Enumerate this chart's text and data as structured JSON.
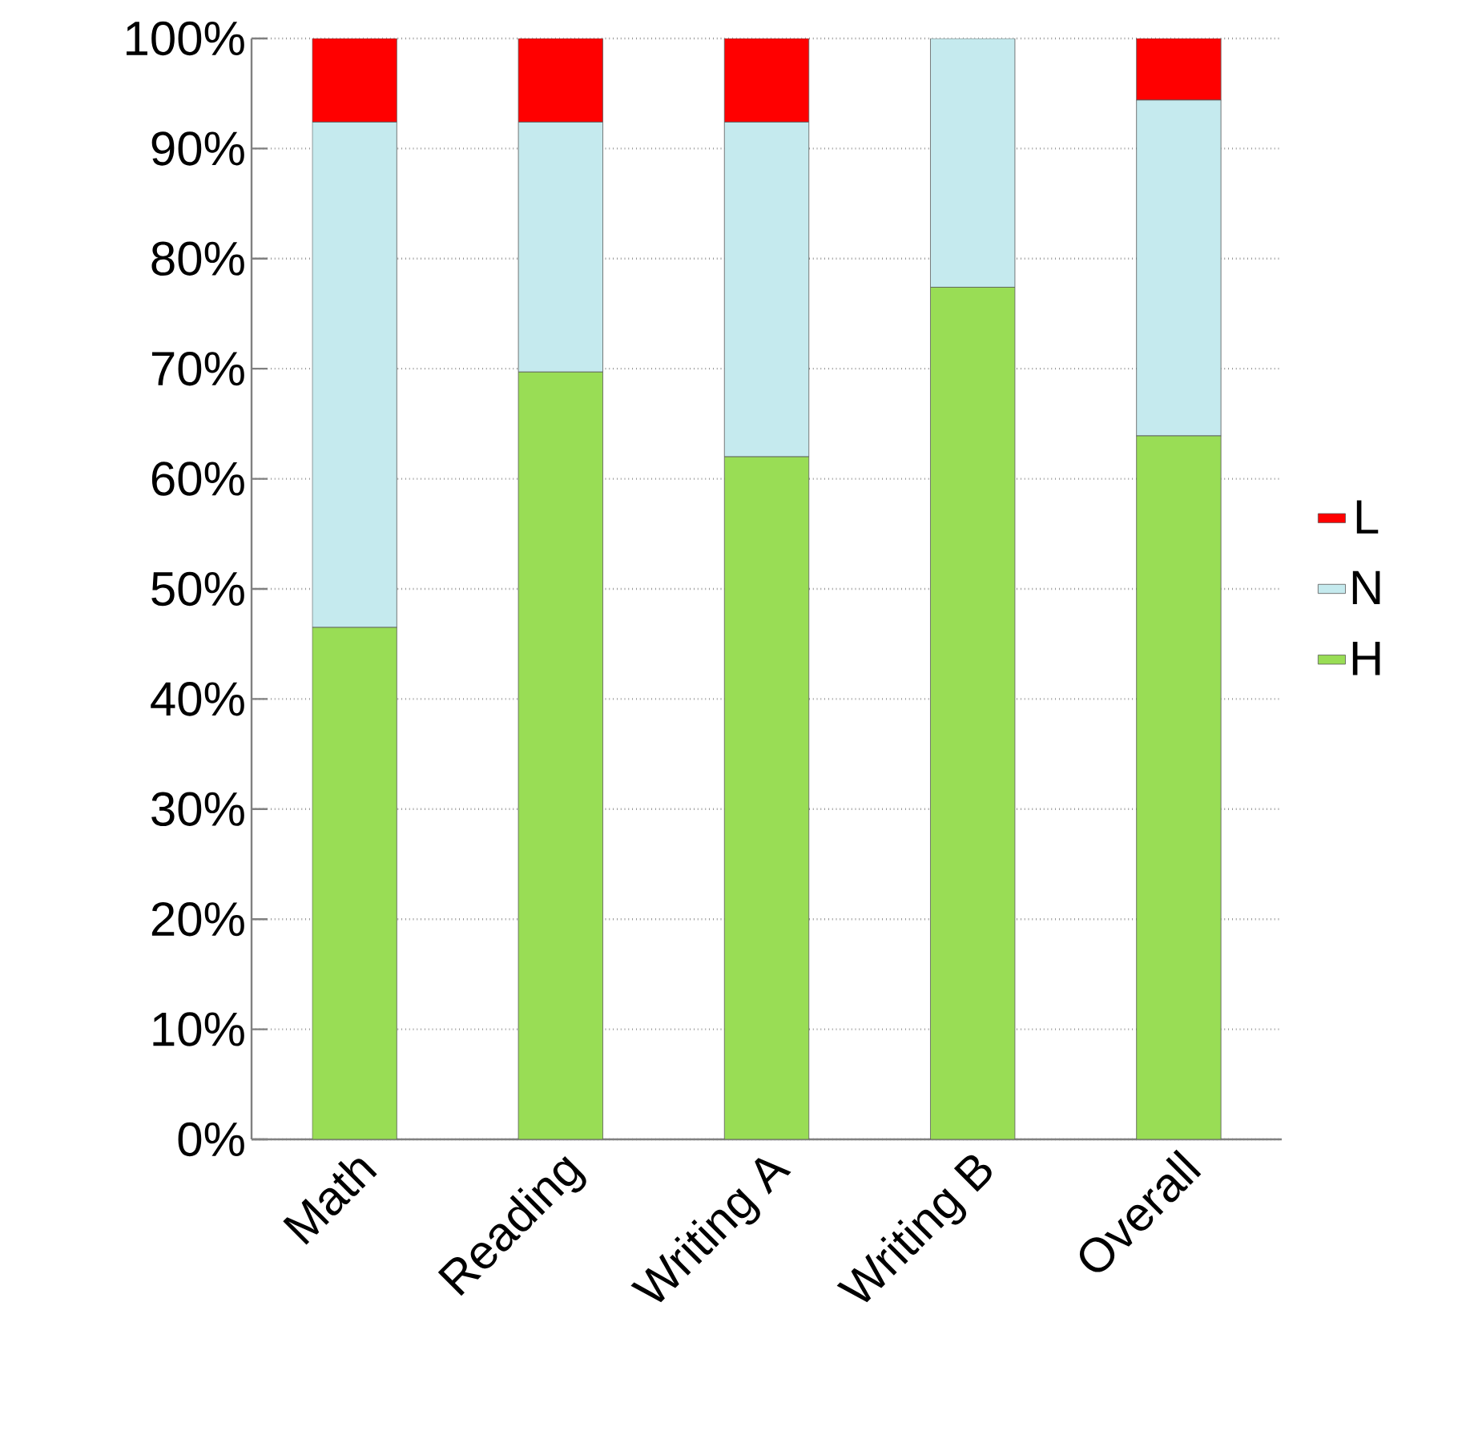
{
  "chart_data": {
    "type": "bar",
    "stacked": true,
    "categories": [
      "Math",
      "Reading",
      "Writing A",
      "Writing B",
      "Overall"
    ],
    "series": [
      {
        "name": "H",
        "color": "#99dd55",
        "values": [
          46.5,
          69.7,
          62.0,
          77.4,
          63.9
        ]
      },
      {
        "name": "N",
        "color": "#c5eaee",
        "values": [
          45.9,
          22.7,
          30.4,
          22.6,
          30.5
        ]
      },
      {
        "name": "L",
        "color": "#ff0000",
        "values": [
          7.6,
          7.6,
          7.6,
          0,
          5.6
        ]
      }
    ],
    "ylim": [
      0,
      100
    ],
    "yticks": [
      {
        "value": 0,
        "label": "0%"
      },
      {
        "value": 10,
        "label": "10%"
      },
      {
        "value": 20,
        "label": "20%"
      },
      {
        "value": 30,
        "label": "30%"
      },
      {
        "value": 40,
        "label": "40%"
      },
      {
        "value": 50,
        "label": "50%"
      },
      {
        "value": 60,
        "label": "60%"
      },
      {
        "value": 70,
        "label": "70%"
      },
      {
        "value": 80,
        "label": "80%"
      },
      {
        "value": 90,
        "label": "90%"
      },
      {
        "value": 100,
        "label": "100%"
      }
    ],
    "grid": "y",
    "legend": "right"
  }
}
